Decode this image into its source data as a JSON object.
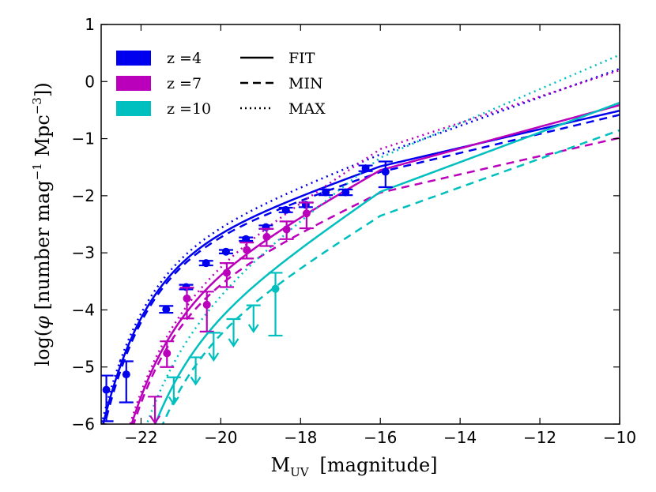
{
  "chart_data": {
    "type": "line",
    "xlabel": "M",
    "xlabel_sub": "UV",
    "xlabel_unit": "[magnitude]",
    "ylabel_pre": "log(",
    "ylabel_phi": "φ",
    "ylabel_mid": " [number mag",
    "ylabel_exp1": "−1",
    "ylabel_mpc": " Mpc",
    "ylabel_exp2": "−3",
    "ylabel_post": "])",
    "xlim": [
      -23,
      -10
    ],
    "ylim": [
      -6,
      1
    ],
    "xticks": [
      -22,
      -20,
      -18,
      -16,
      -14,
      -12,
      -10
    ],
    "xtick_labels": [
      "−22",
      "−20",
      "−18",
      "−16",
      "−14",
      "−12",
      "−10"
    ],
    "yticks": [
      1,
      0,
      -1,
      -2,
      -3,
      -4,
      -5,
      -6
    ],
    "ytick_labels": [
      "1",
      "0",
      "−1",
      "−2",
      "−3",
      "−4",
      "−5",
      "−6"
    ],
    "legend": {
      "position": "top-left",
      "series_entries": [
        {
          "label": "z =4",
          "color": "#0000ee"
        },
        {
          "label": "z =7",
          "color": "#bb00bb"
        },
        {
          "label": "z =10",
          "color": "#00bfbf"
        }
      ],
      "style_entries": [
        {
          "label": "FIT",
          "style": "solid"
        },
        {
          "label": "MIN",
          "style": "dashed"
        },
        {
          "label": "MAX",
          "style": "dotted"
        }
      ]
    },
    "series": [
      {
        "name": "z=4",
        "color": "#0000ee",
        "fit": {
          "phi_star_log": -2.69,
          "M_star": -20.94,
          "alpha": -1.63,
          "faint_slope": 0.1625
        },
        "min": {
          "phi_star_log": -2.72,
          "M_star": -20.9,
          "alpha": -1.6,
          "faint_slope": 0.167
        },
        "max": {
          "phi_star_log": -2.63,
          "M_star": -20.98,
          "alpha": -1.7,
          "faint_slope": 0.25
        },
        "points": [
          {
            "x": -22.87,
            "y": -5.4,
            "yerr_low": -5.95,
            "yerr_high": -5.15
          },
          {
            "x": -22.37,
            "y": -5.13,
            "yerr_low": -5.62,
            "yerr_high": -4.9
          },
          {
            "x": -21.37,
            "y": -3.99,
            "yerr_low": -4.05,
            "yerr_high": -3.93
          },
          {
            "x": -20.87,
            "y": -3.6,
            "yerr_low": -3.64,
            "yerr_high": -3.56
          },
          {
            "x": -20.37,
            "y": -3.18,
            "yerr_low": -3.22,
            "yerr_high": -3.14
          },
          {
            "x": -19.87,
            "y": -2.98,
            "yerr_low": -3.01,
            "yerr_high": -2.95
          },
          {
            "x": -19.37,
            "y": -2.76,
            "yerr_low": -2.79,
            "yerr_high": -2.73
          },
          {
            "x": -18.87,
            "y": -2.55,
            "yerr_low": -2.58,
            "yerr_high": -2.52
          },
          {
            "x": -18.37,
            "y": -2.25,
            "yerr_low": -2.29,
            "yerr_high": -2.21
          },
          {
            "x": -17.87,
            "y": -2.16,
            "yerr_low": -2.2,
            "yerr_high": -2.12
          },
          {
            "x": -17.37,
            "y": -1.94,
            "yerr_low": -1.99,
            "yerr_high": -1.89
          },
          {
            "x": -16.87,
            "y": -1.94,
            "yerr_low": -1.99,
            "yerr_high": -1.89
          },
          {
            "x": -16.37,
            "y": -1.52,
            "yerr_low": -1.57,
            "yerr_high": -1.47
          },
          {
            "x": -15.87,
            "y": -1.58,
            "yerr_low": -1.85,
            "yerr_high": -1.4
          }
        ],
        "upper_limits": []
      },
      {
        "name": "z=7",
        "color": "#bb00bb",
        "fit": {
          "phi_star_log": -3.35,
          "M_star": -20.6,
          "alpha": -2.0,
          "faint_slope": 0.19
        },
        "min": {
          "phi_star_log": -3.45,
          "M_star": -20.55,
          "alpha": -1.85,
          "faint_slope": 0.16
        },
        "max": {
          "phi_star_log": -3.28,
          "M_star": -20.65,
          "alpha": -2.15,
          "faint_slope": 0.23
        },
        "points": [
          {
            "x": -21.35,
            "y": -4.76,
            "yerr_low": -5.0,
            "yerr_high": -4.55
          },
          {
            "x": -20.85,
            "y": -3.8,
            "yerr_low": -4.15,
            "yerr_high": -3.61
          },
          {
            "x": -20.35,
            "y": -3.91,
            "yerr_low": -4.38,
            "yerr_high": -3.68
          },
          {
            "x": -19.85,
            "y": -3.35,
            "yerr_low": -3.6,
            "yerr_high": -3.18
          },
          {
            "x": -19.35,
            "y": -2.95,
            "yerr_low": -3.1,
            "yerr_high": -2.82
          },
          {
            "x": -18.85,
            "y": -2.72,
            "yerr_low": -2.88,
            "yerr_high": -2.58
          },
          {
            "x": -18.35,
            "y": -2.59,
            "yerr_low": -2.76,
            "yerr_high": -2.45
          },
          {
            "x": -17.85,
            "y": -2.31,
            "yerr_low": -2.57,
            "yerr_high": -2.12
          }
        ],
        "upper_limits": [
          {
            "x": -21.65,
            "y": -5.52,
            "bottom": -5.98
          }
        ]
      },
      {
        "name": "z=10",
        "color": "#00bfbf",
        "fit": {
          "phi_star_log": -4.0,
          "M_star": -20.4,
          "alpha": -2.2,
          "faint_slope": 0.26
        },
        "min": {
          "phi_star_log": -4.2,
          "M_star": -20.3,
          "alpha": -2.1,
          "faint_slope": 0.25
        },
        "max": {
          "phi_star_log": -3.72,
          "M_star": -20.5,
          "alpha": -2.35,
          "faint_slope": 0.3
        },
        "points": [
          {
            "x": -18.63,
            "y": -3.63,
            "yerr_low": -4.45,
            "yerr_high": -3.35
          }
        ],
        "upper_limits": [
          {
            "x": -21.18,
            "y": -5.18,
            "bottom": -5.65
          },
          {
            "x": -20.63,
            "y": -4.83,
            "bottom": -5.3
          },
          {
            "x": -20.18,
            "y": -4.4,
            "bottom": -4.88
          },
          {
            "x": -19.68,
            "y": -4.16,
            "bottom": -4.63
          },
          {
            "x": -19.18,
            "y": -3.92,
            "bottom": -4.38
          }
        ]
      }
    ]
  }
}
